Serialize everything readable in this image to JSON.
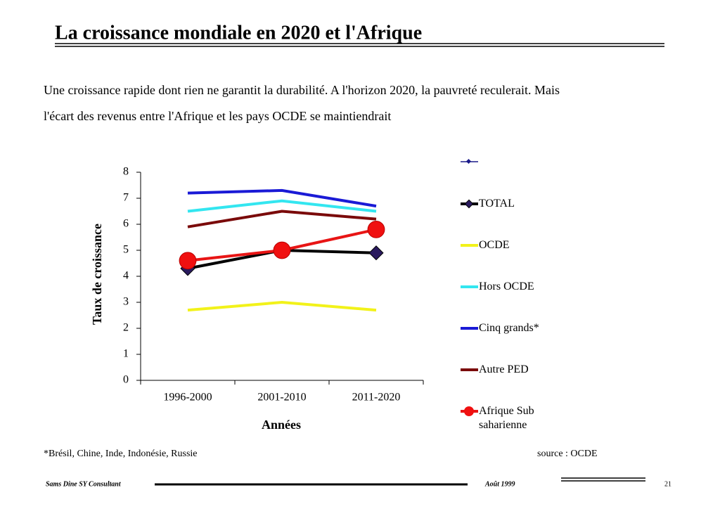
{
  "title": "La croissance mondiale en 2020 et l'Afrique",
  "intro": [
    "Une croissance rapide dont rien ne garantit la durabilité. A l'horizon 2020, la pauvreté reculerait. Mais",
    "l'écart des revenus entre l'Afrique et les pays OCDE se maintiendrait"
  ],
  "footnote": "*Brésil, Chine, Inde, Indonésie, Russie",
  "source": "source : OCDE",
  "footer": {
    "author": "Sams Dine SY Consultant",
    "date": "Août 1999",
    "page": "21"
  },
  "chart_data": {
    "type": "line",
    "xlabel": "Années",
    "ylabel": "Taux de croissance",
    "categories": [
      "1996-2000",
      "2001-2010",
      "2011-2020"
    ],
    "ylim": [
      0,
      8
    ],
    "yticks": [
      0,
      1,
      2,
      3,
      4,
      5,
      6,
      7,
      8
    ],
    "series": [
      {
        "name": "TOTAL",
        "color": "#000000",
        "marker": "diamond",
        "marker_color": "#2a1a5e",
        "values": [
          4.3,
          5.0,
          4.9
        ]
      },
      {
        "name": "OCDE",
        "color": "#f2f21a",
        "values": [
          2.7,
          3.0,
          2.7
        ]
      },
      {
        "name": "Hors OCDE",
        "color": "#33e6f0",
        "values": [
          6.5,
          6.9,
          6.5
        ]
      },
      {
        "name": "Cinq grands*",
        "color": "#1a1ad6",
        "values": [
          7.2,
          7.3,
          6.7
        ]
      },
      {
        "name": "Autre PED",
        "color": "#7a0a0a",
        "values": [
          5.9,
          6.5,
          6.2
        ]
      },
      {
        "name": "Afrique Sub saharienne",
        "color": "#e81515",
        "marker": "circle",
        "marker_color": "#f01010",
        "values": [
          4.6,
          5.0,
          5.8
        ]
      }
    ]
  }
}
